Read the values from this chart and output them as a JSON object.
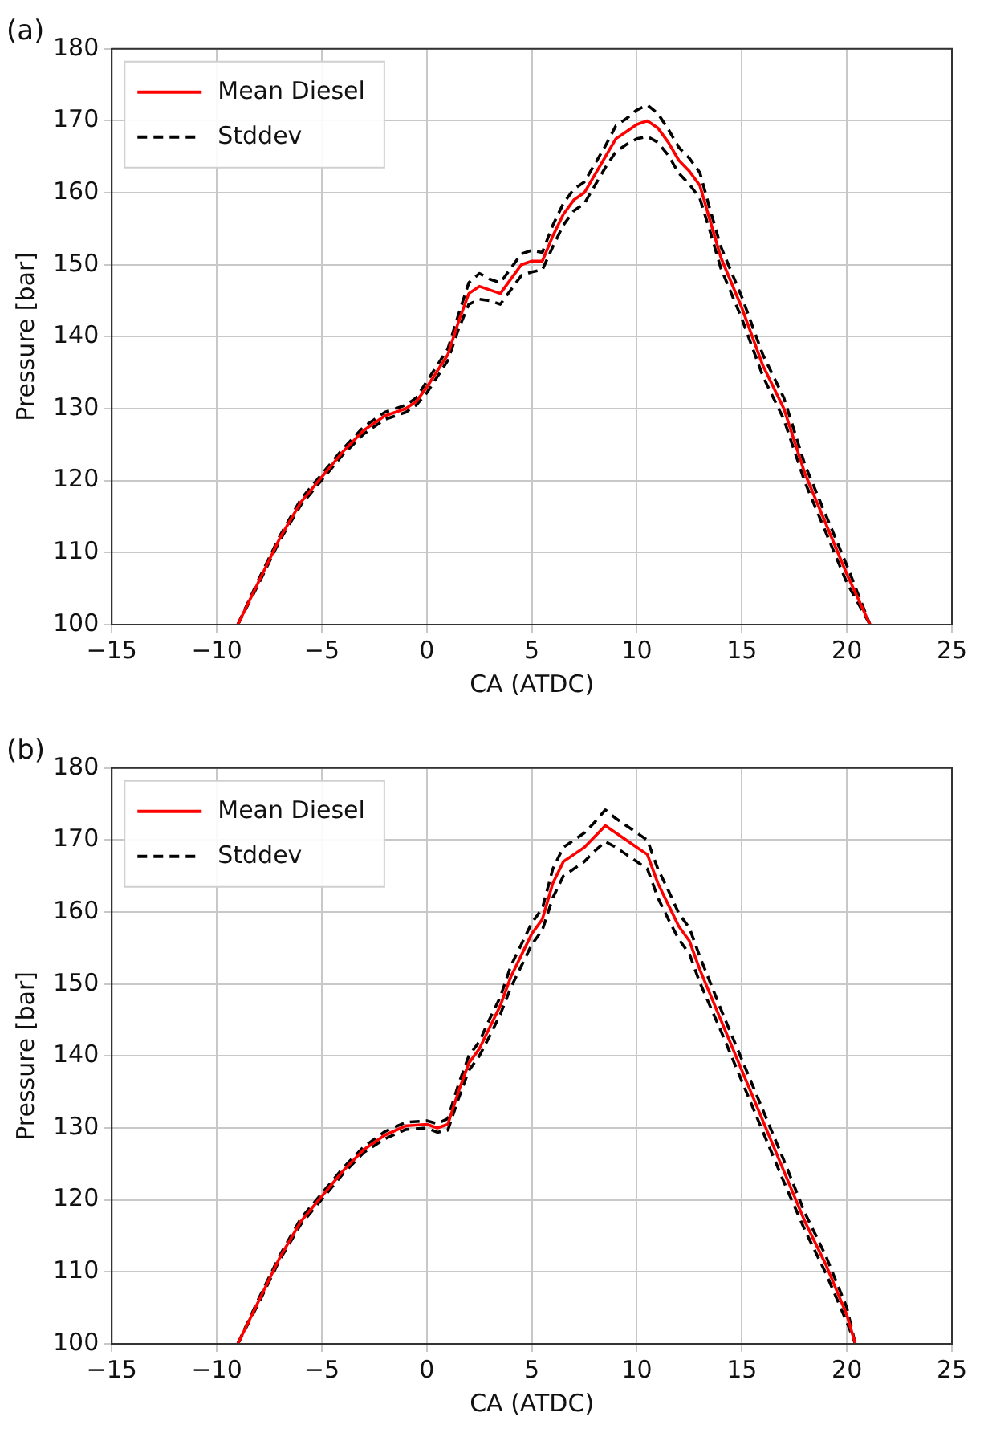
{
  "chart_data": [
    {
      "type": "line",
      "title": "(a)",
      "xlabel": "CA (ATDC)",
      "ylabel": "Pressure [bar]",
      "xlim": [
        -15,
        25
      ],
      "xticks": [
        -15,
        -10,
        -5,
        0,
        5,
        10,
        15,
        20,
        25
      ],
      "ylim": [
        100,
        180
      ],
      "yticks": [
        100,
        110,
        120,
        130,
        140,
        150,
        160,
        170,
        180
      ],
      "grid": true,
      "legend": "top left",
      "marker": "none",
      "x": [
        -9,
        -8,
        -7,
        -6,
        -5,
        -4,
        -3,
        -2,
        -1,
        -0.5,
        0,
        1,
        1.5,
        2,
        2.5,
        3,
        3.5,
        4,
        4.5,
        5,
        5.5,
        6,
        6.5,
        7,
        7.5,
        8,
        8.5,
        9,
        9.5,
        10,
        10.5,
        11,
        11.5,
        12,
        12.5,
        13,
        13.5,
        14,
        15,
        16,
        17,
        18,
        19,
        20,
        21.1
      ],
      "series": [
        {
          "name": "Mean Diesel",
          "color": "#ff0000",
          "line_style": "solid",
          "values": [
            100,
            106,
            112,
            117,
            120.5,
            124,
            127,
            129,
            130,
            131,
            133,
            137.5,
            142,
            146,
            147,
            146.5,
            146,
            148,
            150,
            150.5,
            150.5,
            154,
            157,
            159,
            160,
            162.5,
            165,
            167.5,
            168.5,
            169.5,
            170,
            169,
            167,
            164.5,
            163,
            161,
            156,
            151,
            144,
            136,
            130,
            121,
            114,
            107,
            100
          ]
        },
        {
          "name": "Stddev",
          "color": "#000000",
          "line_style": "dashed",
          "values": [
            100,
            106.3,
            112.3,
            117.4,
            120.9,
            124.4,
            127.5,
            129.5,
            130.5,
            131.5,
            133.8,
            138.3,
            143,
            147.5,
            148.8,
            148,
            147.5,
            149.5,
            151.5,
            152,
            151.7,
            155.5,
            158.5,
            160.5,
            161.5,
            164,
            166.5,
            169.3,
            170.3,
            171.5,
            172.2,
            171,
            168.8,
            166.3,
            164.8,
            162.8,
            157.5,
            152.5,
            145.5,
            137.5,
            131.5,
            122.2,
            115.2,
            108.2,
            100
          ]
        },
        {
          "color": "#000000",
          "line_style": "dashed",
          "values": [
            100,
            105.7,
            111.7,
            116.6,
            120.1,
            123.6,
            126.5,
            128.5,
            129.5,
            130.5,
            132.2,
            136.7,
            141,
            144.5,
            145.2,
            145,
            144.5,
            146.5,
            148.5,
            149,
            149.3,
            152.5,
            155.5,
            157.5,
            158.5,
            161,
            163.5,
            165.7,
            166.7,
            167.5,
            167.8,
            167,
            165.2,
            162.7,
            161.2,
            159.2,
            154.5,
            149.5,
            142.5,
            134.5,
            128.5,
            119.8,
            112.8,
            105.8,
            100
          ]
        }
      ]
    },
    {
      "type": "line",
      "title": "(b)",
      "xlabel": "CA (ATDC)",
      "ylabel": "Pressure [bar]",
      "xlim": [
        -15,
        25
      ],
      "xticks": [
        -15,
        -10,
        -5,
        0,
        5,
        10,
        15,
        20,
        25
      ],
      "ylim": [
        100,
        180
      ],
      "yticks": [
        100,
        110,
        120,
        130,
        140,
        150,
        160,
        170,
        180
      ],
      "grid": true,
      "legend": "top left",
      "marker": "none",
      "x": [
        -9,
        -8,
        -7,
        -6,
        -5,
        -4,
        -3,
        -2,
        -1,
        0,
        0.5,
        1,
        1.5,
        2,
        2.5,
        3,
        3.5,
        4,
        4.5,
        5,
        5.5,
        6,
        6.5,
        7,
        7.5,
        8,
        8.5,
        9,
        9.5,
        10,
        10.5,
        11,
        11.5,
        12,
        12.5,
        13,
        14,
        15,
        16,
        17,
        18,
        19,
        20,
        20.4
      ],
      "series": [
        {
          "name": "Mean Diesel",
          "color": "#ff0000",
          "line_style": "solid",
          "values": [
            100,
            106,
            112,
            117,
            120.5,
            124,
            127,
            129,
            130.3,
            130.5,
            130,
            130.5,
            135,
            139,
            141,
            144,
            147,
            151,
            154,
            157,
            159,
            164,
            167,
            168,
            169,
            170.5,
            172,
            171,
            170,
            169,
            168,
            164,
            161,
            158,
            156,
            152,
            145,
            138,
            131,
            124,
            117,
            111,
            104,
            100
          ]
        },
        {
          "name": "Stddev",
          "color": "#000000",
          "line_style": "dashed",
          "values": [
            100,
            106.3,
            112.3,
            117.4,
            120.9,
            124.4,
            127.4,
            129.5,
            130.8,
            131,
            130.6,
            131.3,
            136,
            140,
            142,
            145.2,
            148.2,
            152.5,
            155.5,
            158.5,
            160.5,
            166,
            169,
            170,
            171,
            172.5,
            174.2,
            173,
            172,
            171,
            170,
            166,
            163,
            159.8,
            157.8,
            153.8,
            146.5,
            139.5,
            132.5,
            125.5,
            118.2,
            112.2,
            105,
            100
          ]
        },
        {
          "color": "#000000",
          "line_style": "dashed",
          "values": [
            100,
            105.7,
            111.7,
            116.6,
            120.1,
            123.6,
            126.6,
            128.5,
            129.8,
            130,
            129.4,
            129.7,
            134,
            138,
            140,
            142.8,
            145.8,
            149.5,
            152.5,
            155.5,
            157.5,
            162,
            165,
            166,
            167,
            168.5,
            169.8,
            169,
            168,
            167,
            166,
            162,
            159,
            156.2,
            154.2,
            150.2,
            143.5,
            136.5,
            129.5,
            122.5,
            115.8,
            109.8,
            103,
            100
          ]
        }
      ]
    }
  ]
}
